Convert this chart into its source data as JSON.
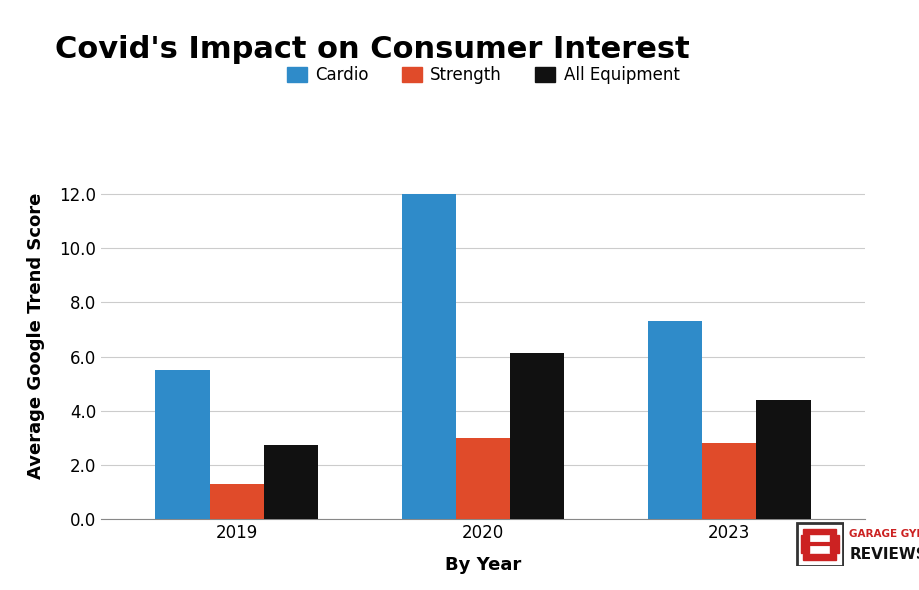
{
  "title": "Covid's Impact on Consumer Interest",
  "xlabel": "By Year",
  "ylabel": "Average Google Trend Score",
  "categories": [
    "2019",
    "2020",
    "2023"
  ],
  "series": {
    "Cardio": [
      5.5,
      12.0,
      7.3
    ],
    "Strength": [
      1.3,
      3.0,
      2.8
    ],
    "All Equipment": [
      2.75,
      6.15,
      4.4
    ]
  },
  "colors": {
    "Cardio": "#2f8bc9",
    "Strength": "#e04b2a",
    "All Equipment": "#111111"
  },
  "ylim": [
    0.0,
    13.5
  ],
  "yticks": [
    0.0,
    2.0,
    4.0,
    6.0,
    8.0,
    10.0,
    12.0
  ],
  "bar_width": 0.22,
  "title_fontsize": 22,
  "axis_label_fontsize": 13,
  "tick_fontsize": 12,
  "legend_fontsize": 12,
  "background_color": "#ffffff",
  "grid_color": "#cccccc",
  "logo_text_top": "GARAGE GYM",
  "logo_text_bottom": "REVIEWS",
  "logo_color_top": "#cc2222",
  "logo_color_bottom": "#111111"
}
